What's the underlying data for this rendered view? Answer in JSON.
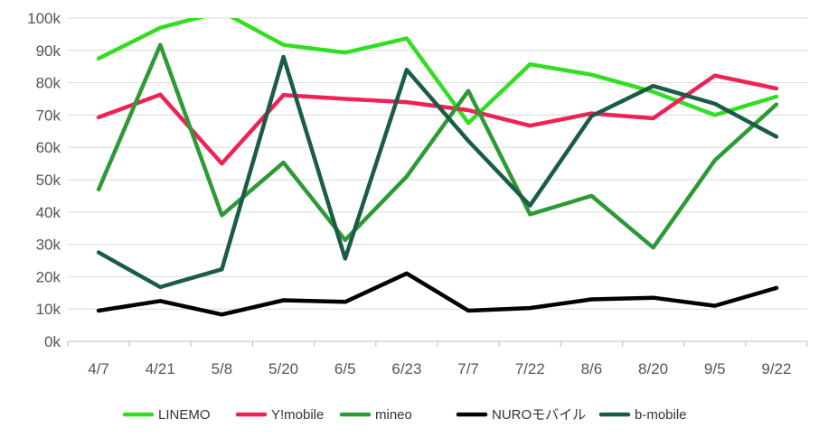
{
  "chart_data": {
    "type": "line",
    "title": "",
    "xlabel": "",
    "ylabel": "",
    "categories": [
      "4/7",
      "4/21",
      "5/8",
      "5/20",
      "6/5",
      "6/23",
      "7/7",
      "7/22",
      "8/6",
      "8/20",
      "9/5",
      "9/22"
    ],
    "yticks": [
      "0k",
      "10k",
      "20k",
      "30k",
      "40k",
      "50k",
      "60k",
      "70k",
      "80k",
      "90k",
      "100k"
    ],
    "ylim": [
      0,
      100000
    ],
    "grid": true,
    "legend_position": "bottom",
    "series": [
      {
        "name": "LINEMO",
        "color": "#33dd22",
        "values": [
          87500,
          97000,
          102000,
          91700,
          89300,
          93700,
          67500,
          85700,
          82500,
          77200,
          70000,
          75700
        ]
      },
      {
        "name": "Y!mobile",
        "color": "#ee2255",
        "values": [
          69300,
          76300,
          55000,
          76200,
          75000,
          74000,
          71500,
          66700,
          70500,
          69000,
          82200,
          78200
        ]
      },
      {
        "name": "mineo",
        "color": "#2e9a36",
        "values": [
          47000,
          91700,
          39000,
          55300,
          31300,
          51000,
          77500,
          39300,
          45000,
          29000,
          56000,
          73300
        ]
      },
      {
        "name": "NUROモバイル",
        "color": "#000000",
        "values": [
          9500,
          12500,
          8300,
          12700,
          12200,
          21000,
          9500,
          10300,
          13000,
          13500,
          11000,
          16500
        ]
      },
      {
        "name": "b-mobile",
        "color": "#1a5c46",
        "values": [
          27500,
          16800,
          22300,
          88000,
          25600,
          84000,
          62000,
          42000,
          69700,
          79000,
          73500,
          63300
        ]
      }
    ]
  }
}
